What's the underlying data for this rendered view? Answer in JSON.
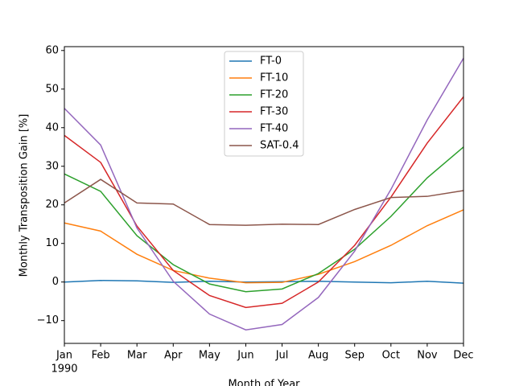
{
  "chart_data": {
    "type": "line",
    "ylabel": "Monthly Transposition Gain [%]",
    "xlabel": "Month of Year",
    "categories": [
      "Jan",
      "Feb",
      "Mar",
      "Apr",
      "May",
      "Jun",
      "Jul",
      "Aug",
      "Sep",
      "Oct",
      "Nov",
      "Dec"
    ],
    "x_year_label": "1990",
    "ylim": [
      -15.9,
      61
    ],
    "yticks": [
      {
        "value": -10,
        "label": "−10"
      },
      0,
      10,
      20,
      30,
      40,
      50,
      60
    ],
    "legend": "upper center",
    "series": [
      {
        "name": "FT-0",
        "color": "#1f77b4",
        "values": [
          0,
          0.4,
          0.3,
          -0.1,
          0.2,
          0,
          0.1,
          0.2,
          0,
          -0.2,
          0.2,
          -0.3
        ]
      },
      {
        "name": "FT-10",
        "color": "#ff7f0e",
        "values": [
          15.3,
          13.2,
          7.2,
          3,
          1,
          -0.2,
          -0.1,
          2,
          5.3,
          9.5,
          14.6,
          18.7
        ]
      },
      {
        "name": "FT-20",
        "color": "#2ca02c",
        "values": [
          28,
          23.5,
          12,
          4.5,
          -0.5,
          -2.5,
          -1.8,
          2.2,
          8.5,
          17,
          27,
          35
        ]
      },
      {
        "name": "FT-30",
        "color": "#d62728",
        "values": [
          38,
          31,
          14.5,
          3,
          -3.5,
          -6.6,
          -5.5,
          0,
          9.5,
          22,
          36,
          48
        ]
      },
      {
        "name": "FT-40",
        "color": "#9467bd",
        "values": [
          45,
          35.5,
          14,
          0.2,
          -8.3,
          -12.4,
          -11,
          -4,
          8,
          24,
          42,
          58
        ]
      },
      {
        "name": "SAT-0.4",
        "color": "#8c564b",
        "values": [
          20.5,
          26.6,
          20.5,
          20.2,
          14.9,
          14.7,
          15,
          14.9,
          18.8,
          21.9,
          22.2,
          23.7
        ]
      }
    ]
  }
}
